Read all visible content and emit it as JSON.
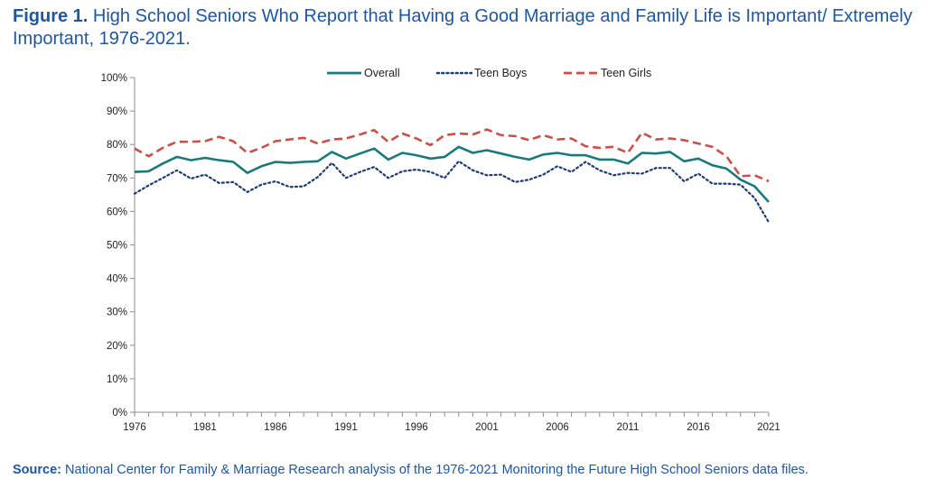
{
  "title": {
    "lead": "Figure 1.",
    "text": "High School Seniors Who Report that Having a Good Marriage and Family Life is Important/ Extremely Important, 1976-2021."
  },
  "source": {
    "lead": "Source:",
    "text": "National Center for Family & Marriage Research analysis of the 1976-2021 Monitoring the Future High School Seniors data files."
  },
  "chart_data": {
    "type": "line",
    "x": [
      1976,
      1977,
      1978,
      1979,
      1980,
      1981,
      1982,
      1983,
      1984,
      1985,
      1986,
      1987,
      1988,
      1989,
      1990,
      1991,
      1992,
      1993,
      1994,
      1995,
      1996,
      1997,
      1998,
      1999,
      2000,
      2001,
      2002,
      2003,
      2004,
      2005,
      2006,
      2007,
      2008,
      2009,
      2010,
      2011,
      2012,
      2013,
      2014,
      2015,
      2016,
      2017,
      2018,
      2019,
      2020,
      2021
    ],
    "x_ticks": [
      1976,
      1981,
      1986,
      1991,
      1996,
      2001,
      2006,
      2011,
      2016,
      2021
    ],
    "y_ticks": [
      "0%",
      "10%",
      "20%",
      "30%",
      "40%",
      "50%",
      "60%",
      "70%",
      "80%",
      "90%",
      "100%"
    ],
    "ylim": [
      0,
      100
    ],
    "grid": false,
    "legend_position": "top",
    "series": [
      {
        "name": "Overall",
        "color": "#1a7a7a",
        "style": "solid",
        "values": [
          71.8,
          72.0,
          74.3,
          76.3,
          75.3,
          76.0,
          75.3,
          74.8,
          71.5,
          73.5,
          74.8,
          74.5,
          74.8,
          75.0,
          77.8,
          75.8,
          77.3,
          78.8,
          75.5,
          77.5,
          76.8,
          75.8,
          76.3,
          79.3,
          77.5,
          78.3,
          77.3,
          76.3,
          75.5,
          77.0,
          77.5,
          76.8,
          76.8,
          75.5,
          75.5,
          74.3,
          77.5,
          77.3,
          77.8,
          75.0,
          75.8,
          73.8,
          72.8,
          69.5,
          67.5,
          62.8
        ]
      },
      {
        "name": "Teen Boys",
        "color": "#1f3b73",
        "style": "dotted",
        "values": [
          65.3,
          67.8,
          70.0,
          72.3,
          69.8,
          71.0,
          68.5,
          68.8,
          65.8,
          68.0,
          69.0,
          67.3,
          67.5,
          70.3,
          74.5,
          70.0,
          71.8,
          73.3,
          70.0,
          72.0,
          72.5,
          71.8,
          70.0,
          75.0,
          72.3,
          70.8,
          71.0,
          68.8,
          69.5,
          71.0,
          73.5,
          71.8,
          74.8,
          72.3,
          70.8,
          71.5,
          71.3,
          73.0,
          73.0,
          69.0,
          71.3,
          68.3,
          68.3,
          68.0,
          64.0,
          56.8
        ]
      },
      {
        "name": "Teen Girls",
        "color": "#c8504a",
        "style": "dashed",
        "values": [
          78.8,
          76.5,
          79.0,
          80.8,
          80.8,
          81.0,
          82.3,
          81.0,
          77.5,
          79.0,
          81.0,
          81.5,
          82.0,
          80.3,
          81.5,
          81.8,
          83.0,
          84.3,
          80.8,
          83.3,
          81.8,
          79.8,
          82.8,
          83.3,
          83.0,
          84.5,
          82.8,
          82.5,
          81.3,
          82.8,
          81.5,
          81.8,
          79.5,
          79.0,
          79.3,
          77.5,
          83.5,
          81.5,
          81.8,
          81.3,
          80.3,
          79.3,
          76.5,
          70.5,
          70.8,
          69.0
        ]
      }
    ]
  }
}
